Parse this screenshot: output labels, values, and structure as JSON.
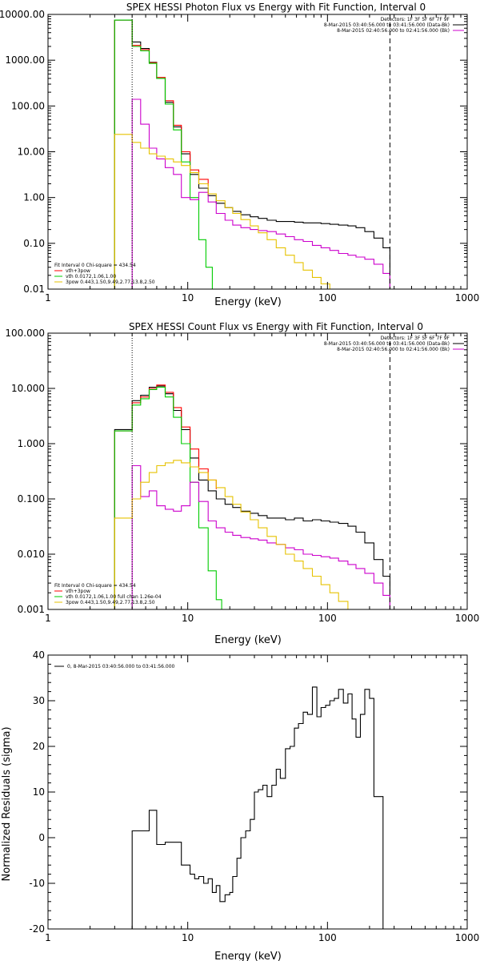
{
  "page": {
    "background": "#ffffff"
  },
  "colors": {
    "black": "#000000",
    "red": "#ff0000",
    "green": "#00cc00",
    "magenta": "#cc00cc",
    "yellow": "#e6c200"
  },
  "chart_data": [
    {
      "type": "line",
      "title": "SPEX HESSI Photon Flux vs Energy with Fit Function, Interval 0",
      "xlabel": "Energy (keV)",
      "ylabel": "",
      "xscale": "log",
      "yscale": "log",
      "xlim": [
        1,
        1000
      ],
      "ylim": [
        0.01,
        10000
      ],
      "xticks": [
        1,
        10,
        100,
        1000
      ],
      "xtick_labels": [
        "1",
        "10",
        "100",
        "1000"
      ],
      "yticks": [
        0.01,
        0.1,
        1,
        10,
        100,
        1000,
        10000
      ],
      "ytick_labels": [
        "0.01",
        "0.10",
        "1.00",
        "10.00",
        "100.00",
        "1000.00",
        "10000.00"
      ],
      "vlines": [
        {
          "x": 4,
          "style": "dotted",
          "color": "#000000"
        },
        {
          "x": 280,
          "style": "dashed",
          "color": "#000000"
        }
      ],
      "legend_right": [
        {
          "text": "Detectors: 1F 3F 5F 6F 7F 9F",
          "color": ""
        },
        {
          "text": "8-Mar-2015 03:40:56.000 to 03:41:56.000 (Data-Bk)",
          "color": "#000000"
        },
        {
          "text": "8-Mar-2015 02:40:56.000 to 02:41:56.000 (Bk)",
          "color": "#cc00cc"
        }
      ],
      "legend_left": [
        {
          "text": "Fit Interval 0   Chi-square = 434.54",
          "color": ""
        },
        {
          "text": "vth+3pow",
          "color": "#ff0000"
        },
        {
          "text": "vth 0.0172,1.06,1.00",
          "color": "#00cc00"
        },
        {
          "text": "3pow 0.443,1.50,9.49,2.77,13.8,2.50",
          "color": "#e6c200"
        }
      ],
      "legend_placement": "top-right and bottom-left",
      "series": [
        {
          "color": "#000000",
          "x": [
            3,
            3.5,
            4,
            4.6,
            5.3,
            6.0,
            6.9,
            7.9,
            9.0,
            10.4,
            12,
            14,
            16,
            18.5,
            21,
            24,
            28,
            32,
            37,
            43,
            50,
            58,
            67,
            78,
            90,
            104,
            120,
            140,
            160,
            185,
            215,
            250,
            280
          ],
          "y": [
            7500,
            7500,
            2500,
            1800,
            900,
            400,
            120,
            35,
            9,
            3.2,
            1.6,
            1.1,
            0.75,
            0.6,
            0.5,
            0.42,
            0.38,
            0.35,
            0.32,
            0.3,
            0.3,
            0.29,
            0.28,
            0.28,
            0.27,
            0.26,
            0.25,
            0.24,
            0.22,
            0.18,
            0.13,
            0.08,
            0.01
          ]
        },
        {
          "color": "#ff0000",
          "x": [
            3,
            3.5,
            4,
            4.6,
            5.3,
            6.0,
            6.9,
            7.9,
            9.0,
            10.4,
            12,
            14
          ],
          "y": [
            7500,
            7500,
            2100,
            1700,
            880,
            420,
            130,
            38,
            10,
            4.0,
            2.5,
            1.8
          ]
        },
        {
          "color": "#00cc00",
          "x": [
            3,
            3.5,
            4,
            4.6,
            5.3,
            6.0,
            6.9,
            7.9,
            9.0,
            10.4,
            12,
            13.5,
            15
          ],
          "y": [
            7500,
            7500,
            2000,
            1600,
            850,
            400,
            110,
            30,
            6,
            1.0,
            0.12,
            0.03,
            0.01
          ]
        },
        {
          "color": "#cc00cc",
          "x": [
            4,
            4.6,
            5.3,
            6.0,
            6.9,
            7.9,
            9.0,
            10.4,
            12,
            14,
            16,
            18.5,
            21,
            24,
            28,
            32,
            37,
            43,
            50,
            58,
            67,
            78,
            90,
            104,
            120,
            140,
            160,
            185,
            215,
            250,
            280
          ],
          "y": [
            140,
            40,
            12,
            7.0,
            4.5,
            3.2,
            1.0,
            0.9,
            1.3,
            0.8,
            0.45,
            0.32,
            0.25,
            0.22,
            0.2,
            0.19,
            0.18,
            0.16,
            0.14,
            0.12,
            0.11,
            0.09,
            0.08,
            0.07,
            0.06,
            0.055,
            0.05,
            0.045,
            0.035,
            0.022,
            0.01
          ]
        },
        {
          "color": "#e6c200",
          "x": [
            3,
            4,
            4.6,
            5.3,
            6.0,
            6.9,
            7.9,
            9.0,
            10.4,
            12,
            14,
            16,
            18.5,
            21,
            24,
            28,
            32,
            37,
            43,
            50,
            58,
            67,
            78,
            90,
            104,
            120
          ],
          "y": [
            24,
            16,
            12,
            9,
            8,
            7,
            6.0,
            5.0,
            3.5,
            2.0,
            1.2,
            0.85,
            0.6,
            0.45,
            0.33,
            0.24,
            0.17,
            0.12,
            0.08,
            0.055,
            0.038,
            0.026,
            0.018,
            0.013,
            0.01,
            0.01
          ]
        }
      ]
    },
    {
      "type": "line",
      "title": "SPEX HESSI Count Flux vs Energy with Fit Function, Interval 0",
      "xlabel": "Energy (keV)",
      "ylabel": "",
      "xscale": "log",
      "yscale": "log",
      "xlim": [
        1,
        1000
      ],
      "ylim": [
        0.001,
        100
      ],
      "xticks": [
        1,
        10,
        100,
        1000
      ],
      "xtick_labels": [
        "1",
        "10",
        "100",
        "1000"
      ],
      "yticks": [
        0.001,
        0.01,
        0.1,
        1,
        10,
        100
      ],
      "ytick_labels": [
        "0.001",
        "0.010",
        "0.100",
        "1.000",
        "10.000",
        "100.000"
      ],
      "vlines": [
        {
          "x": 4,
          "style": "dotted",
          "color": "#000000"
        },
        {
          "x": 280,
          "style": "dashed",
          "color": "#000000"
        }
      ],
      "legend_right": [
        {
          "text": "Detectors: 1F 3F 5F 6F 7F 9F",
          "color": ""
        },
        {
          "text": "8-Mar-2015 03:40:56.000 to 03:41:56.000 (Data-Bk)",
          "color": "#000000"
        },
        {
          "text": "8-Mar-2015 02:40:56.000 to 02:41:56.000 (Bk)",
          "color": "#cc00cc"
        }
      ],
      "legend_left": [
        {
          "text": "Fit Interval 0   Chi-square = 434.54",
          "color": ""
        },
        {
          "text": "vth+3pow",
          "color": "#ff0000"
        },
        {
          "text": "vth 0.0172,1.06,1.00  full chan 1.26e-04",
          "color": "#00cc00"
        },
        {
          "text": "3pow 0.443,1.50,9.49,2.77,13.8,2.50",
          "color": "#e6c200"
        }
      ],
      "legend_placement": "top-right and bottom-left",
      "series": [
        {
          "color": "#000000",
          "x": [
            3,
            3.5,
            4,
            4.6,
            5.3,
            6.0,
            6.9,
            7.9,
            9.0,
            10.4,
            12,
            14,
            16,
            18.5,
            21,
            24,
            28,
            32,
            37,
            43,
            50,
            58,
            67,
            78,
            90,
            104,
            120,
            140,
            160,
            185,
            215,
            250,
            280
          ],
          "y": [
            1.8,
            1.8,
            6.0,
            7.5,
            10.5,
            11.0,
            8.0,
            4.0,
            1.8,
            0.55,
            0.22,
            0.14,
            0.1,
            0.08,
            0.07,
            0.06,
            0.055,
            0.05,
            0.045,
            0.045,
            0.042,
            0.045,
            0.04,
            0.042,
            0.04,
            0.038,
            0.036,
            0.032,
            0.025,
            0.016,
            0.008,
            0.004,
            0.001
          ]
        },
        {
          "color": "#ff0000",
          "x": [
            3,
            3.5,
            4,
            4.6,
            5.3,
            6.0,
            6.9,
            7.9,
            9.0,
            10.4,
            12,
            14,
            16
          ],
          "y": [
            1.7,
            1.7,
            5.5,
            7.0,
            10.0,
            11.5,
            8.5,
            4.5,
            2.0,
            0.8,
            0.35,
            0.22,
            0.15
          ]
        },
        {
          "color": "#00cc00",
          "x": [
            3,
            3.5,
            4,
            4.6,
            5.3,
            6.0,
            6.9,
            7.9,
            9.0,
            10.4,
            12,
            14,
            16,
            17.5
          ],
          "y": [
            1.7,
            1.7,
            5.0,
            6.5,
            9.5,
            10.5,
            7.0,
            3.0,
            1.0,
            0.2,
            0.03,
            0.005,
            0.0015,
            0.001
          ]
        },
        {
          "color": "#cc00cc",
          "x": [
            4,
            4.6,
            5.3,
            6.0,
            6.9,
            7.9,
            9.0,
            10.4,
            12,
            14,
            16,
            18.5,
            21,
            24,
            28,
            32,
            37,
            43,
            50,
            58,
            67,
            78,
            90,
            104,
            120,
            140,
            160,
            185,
            215,
            250,
            280
          ],
          "y": [
            0.4,
            0.11,
            0.14,
            0.075,
            0.065,
            0.06,
            0.075,
            0.2,
            0.09,
            0.04,
            0.03,
            0.025,
            0.022,
            0.02,
            0.019,
            0.018,
            0.016,
            0.015,
            0.013,
            0.012,
            0.01,
            0.0095,
            0.009,
            0.0085,
            0.0075,
            0.0065,
            0.0055,
            0.0045,
            0.003,
            0.0018,
            0.001
          ]
        },
        {
          "color": "#e6c200",
          "x": [
            3,
            4,
            4.6,
            5.3,
            6.0,
            6.9,
            7.9,
            9.0,
            10.4,
            12,
            14,
            16,
            18.5,
            21,
            24,
            28,
            32,
            37,
            43,
            50,
            58,
            67,
            78,
            90,
            104,
            120,
            140
          ],
          "y": [
            0.045,
            0.1,
            0.2,
            0.3,
            0.4,
            0.45,
            0.5,
            0.45,
            0.38,
            0.3,
            0.22,
            0.16,
            0.11,
            0.08,
            0.058,
            0.042,
            0.03,
            0.021,
            0.015,
            0.01,
            0.0075,
            0.0055,
            0.004,
            0.0028,
            0.002,
            0.0014,
            0.001
          ]
        }
      ]
    },
    {
      "type": "line",
      "title": "",
      "xlabel": "Energy (keV)",
      "ylabel": "Normalized Residuals (sigma)",
      "xscale": "log",
      "yscale": "linear",
      "xlim": [
        1,
        1000
      ],
      "ylim": [
        -20,
        40
      ],
      "xticks": [
        1,
        10,
        100,
        1000
      ],
      "xtick_labels": [
        "1",
        "10",
        "100",
        "1000"
      ],
      "yticks": [
        -20,
        -10,
        0,
        10,
        20,
        30,
        40
      ],
      "ytick_labels": [
        "-20",
        "-10",
        "0",
        "10",
        "20",
        "30",
        "40"
      ],
      "legend_left": [
        {
          "text": "0, 8-Mar-2015 03:40:56.000 to 03:41:56.000",
          "color": "#000000"
        }
      ],
      "legend_placement": "top-left",
      "series": [
        {
          "color": "#000000",
          "x": [
            4,
            4.6,
            5.3,
            6.0,
            6.9,
            7.9,
            9.0,
            10.4,
            11.2,
            12,
            13,
            14,
            15,
            16,
            17,
            18.5,
            20,
            21,
            22.5,
            24,
            26,
            28,
            30,
            32,
            34.5,
            37,
            40,
            43,
            46,
            50,
            54,
            58,
            62,
            67,
            72,
            78,
            84,
            90,
            97,
            104,
            112,
            120,
            130,
            140,
            150,
            160,
            172,
            185,
            200,
            215,
            232,
            250,
            270,
            280
          ],
          "y": [
            1.5,
            1.5,
            6.0,
            -1.5,
            -1.0,
            -1.0,
            -6.0,
            -8.0,
            -9.0,
            -8.5,
            -10.0,
            -9.0,
            -12.0,
            -10.5,
            -14.0,
            -12.5,
            -12.0,
            -8.5,
            -4.5,
            0.0,
            1.5,
            4.0,
            10.0,
            10.5,
            11.5,
            9.0,
            11.5,
            15.0,
            13.0,
            19.5,
            20.0,
            24.0,
            25.0,
            27.5,
            27.0,
            33.0,
            26.5,
            28.5,
            29.0,
            30.0,
            30.5,
            32.5,
            29.5,
            31.5,
            26.0,
            22.0,
            27.0,
            32.5,
            30.5,
            9.0,
            9.0,
            -20,
            -20,
            -20
          ]
        }
      ]
    }
  ]
}
